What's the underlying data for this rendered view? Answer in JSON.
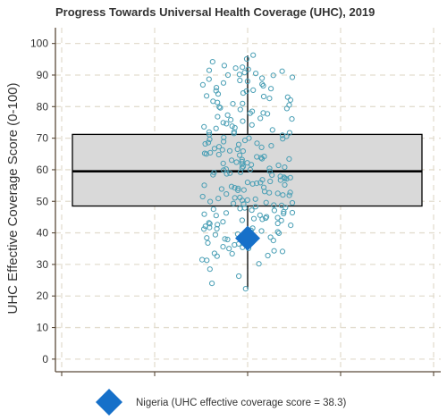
{
  "chart_data": {
    "type": "box",
    "title": "Progress Towards Universal Health Coverage (UHC), 2019",
    "ylabel": "UHC Effective Coverage Score (0-100)",
    "xlabel": "",
    "ylim": [
      -4,
      105
    ],
    "yticks": [
      0,
      10,
      20,
      30,
      40,
      50,
      60,
      70,
      80,
      90,
      100
    ],
    "grid": true,
    "legend_position": "bottom",
    "box": {
      "q1": 48.5,
      "median": 59.5,
      "q3": 71.2,
      "whisker_low": 22.3,
      "whisker_high": 96.2,
      "fill": "#d9d9d9",
      "stroke": "#000000"
    },
    "points": [
      95.1,
      96.3,
      94.2,
      93.0,
      92.5,
      91.8,
      91.5,
      91.2,
      90.5,
      90.2,
      90.0,
      89.9,
      89.0,
      88.7,
      88.0,
      87.5,
      86.6,
      86.0,
      85.2,
      84.9,
      84.0,
      83.4,
      83.0,
      82.1,
      81.7,
      81.0,
      80.5,
      79.9,
      79.1,
      78.5,
      78.0,
      77.3,
      76.8,
      76.1,
      75.4,
      74.9,
      74.2,
      73.8,
      73.1,
      72.6,
      72.0,
      71.5,
      71.1,
      70.6,
      70.2,
      69.8,
      69.3,
      68.9,
      68.4,
      68.0,
      67.6,
      67.1,
      66.7,
      66.3,
      65.9,
      65.4,
      65.0,
      64.6,
      64.2,
      63.8,
      63.4,
      63.0,
      62.6,
      62.2,
      61.8,
      61.4,
      61.0,
      60.6,
      60.2,
      59.9,
      59.5,
      59.1,
      58.7,
      58.3,
      57.9,
      57.5,
      57.1,
      56.7,
      56.3,
      55.9,
      55.5,
      55.1,
      54.7,
      54.3,
      53.9,
      53.5,
      53.1,
      52.7,
      52.3,
      51.9,
      51.5,
      51.1,
      50.7,
      50.3,
      49.9,
      49.5,
      49.1,
      48.7,
      48.3,
      47.9,
      47.5,
      47.1,
      46.7,
      46.3,
      45.9,
      45.5,
      45.1,
      44.7,
      44.3,
      43.9,
      43.5,
      43.0,
      42.6,
      42.1,
      41.7,
      41.2,
      40.8,
      40.3,
      39.9,
      39.4,
      38.9,
      38.4,
      37.9,
      37.3,
      36.8,
      36.2,
      35.6,
      35.0,
      34.3,
      33.5,
      32.6,
      31.5,
      30.2,
      28.5,
      26.3,
      24.0,
      22.3,
      88.3,
      86.9,
      85.7,
      84.3,
      82.6,
      80.9,
      79.4,
      77.7,
      76.3,
      74.6,
      73.3,
      71.9,
      70.9,
      69.6,
      68.6,
      67.3,
      66.0,
      65.2,
      64.1,
      63.2,
      62.4,
      61.6,
      60.8,
      60.0,
      59.2,
      58.4,
      57.6,
      56.8,
      56.0,
      55.2,
      54.4,
      53.6,
      52.8,
      52.0,
      51.2,
      50.4,
      49.6,
      48.8,
      48.0,
      47.2,
      46.4,
      45.6,
      44.8,
      44.0,
      43.2,
      42.4,
      41.5,
      40.6,
      39.6,
      38.6,
      37.6,
      36.5,
      35.4,
      34.1,
      32.8,
      31.3,
      92.2,
      90.8,
      89.3,
      87.1,
      85.0,
      83.2,
      81.3,
      79.6,
      77.9,
      75.8,
      73.6,
      71.7,
      70.0,
      68.2,
      66.5,
      64.8,
      63.5,
      62.0,
      60.4,
      58.9,
      57.3,
      55.7,
      54.1,
      52.5,
      50.9,
      49.3,
      47.7,
      46.1,
      44.5,
      42.9,
      41.3,
      39.7,
      38.1,
      36.5,
      35.1,
      33.4
    ],
    "point_color": "#4a9fb5",
    "highlight": {
      "name": "Nigeria",
      "value": 38.3,
      "color": "#1670c9",
      "legend_label": "Nigeria (UHC effective coverage score = 38.3)"
    }
  }
}
